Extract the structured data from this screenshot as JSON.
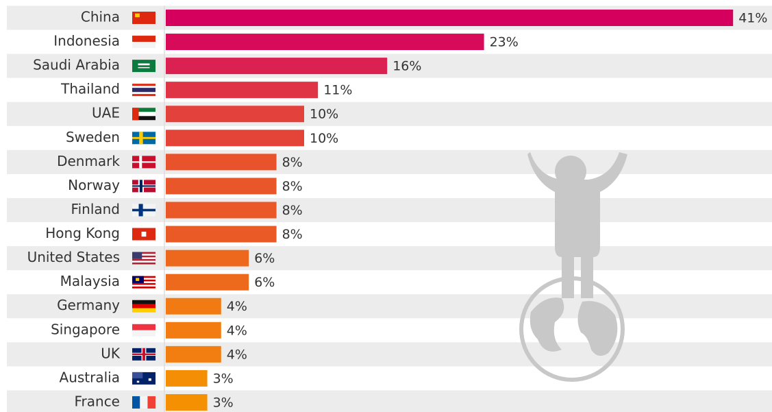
{
  "chart_data": {
    "type": "bar",
    "orientation": "horizontal",
    "categories": [
      "China",
      "Indonesia",
      "Saudi Arabia",
      "Thailand",
      "UAE",
      "Sweden",
      "Denmark",
      "Norway",
      "Finland",
      "Hong Kong",
      "United States",
      "Malaysia",
      "Germany",
      "Singapore",
      "UK",
      "Australia",
      "France"
    ],
    "values": [
      41,
      23,
      16,
      11,
      10,
      10,
      8,
      8,
      8,
      8,
      6,
      6,
      4,
      4,
      4,
      3,
      3
    ],
    "value_labels": [
      "41%",
      "23%",
      "16%",
      "11%",
      "10%",
      "10%",
      "8%",
      "8%",
      "8%",
      "8%",
      "6%",
      "6%",
      "4%",
      "4%",
      "4%",
      "3%",
      "3%"
    ],
    "colors": [
      "#d5005d",
      "#d80a5a",
      "#db2151",
      "#df3346",
      "#e3413b",
      "#e44437",
      "#e8532c",
      "#e9562a",
      "#ea5828",
      "#ea5a27",
      "#ed681d",
      "#ed6a1c",
      "#f17a12",
      "#f27c11",
      "#f27d10",
      "#f48e05",
      "#f59003"
    ]
  }
}
